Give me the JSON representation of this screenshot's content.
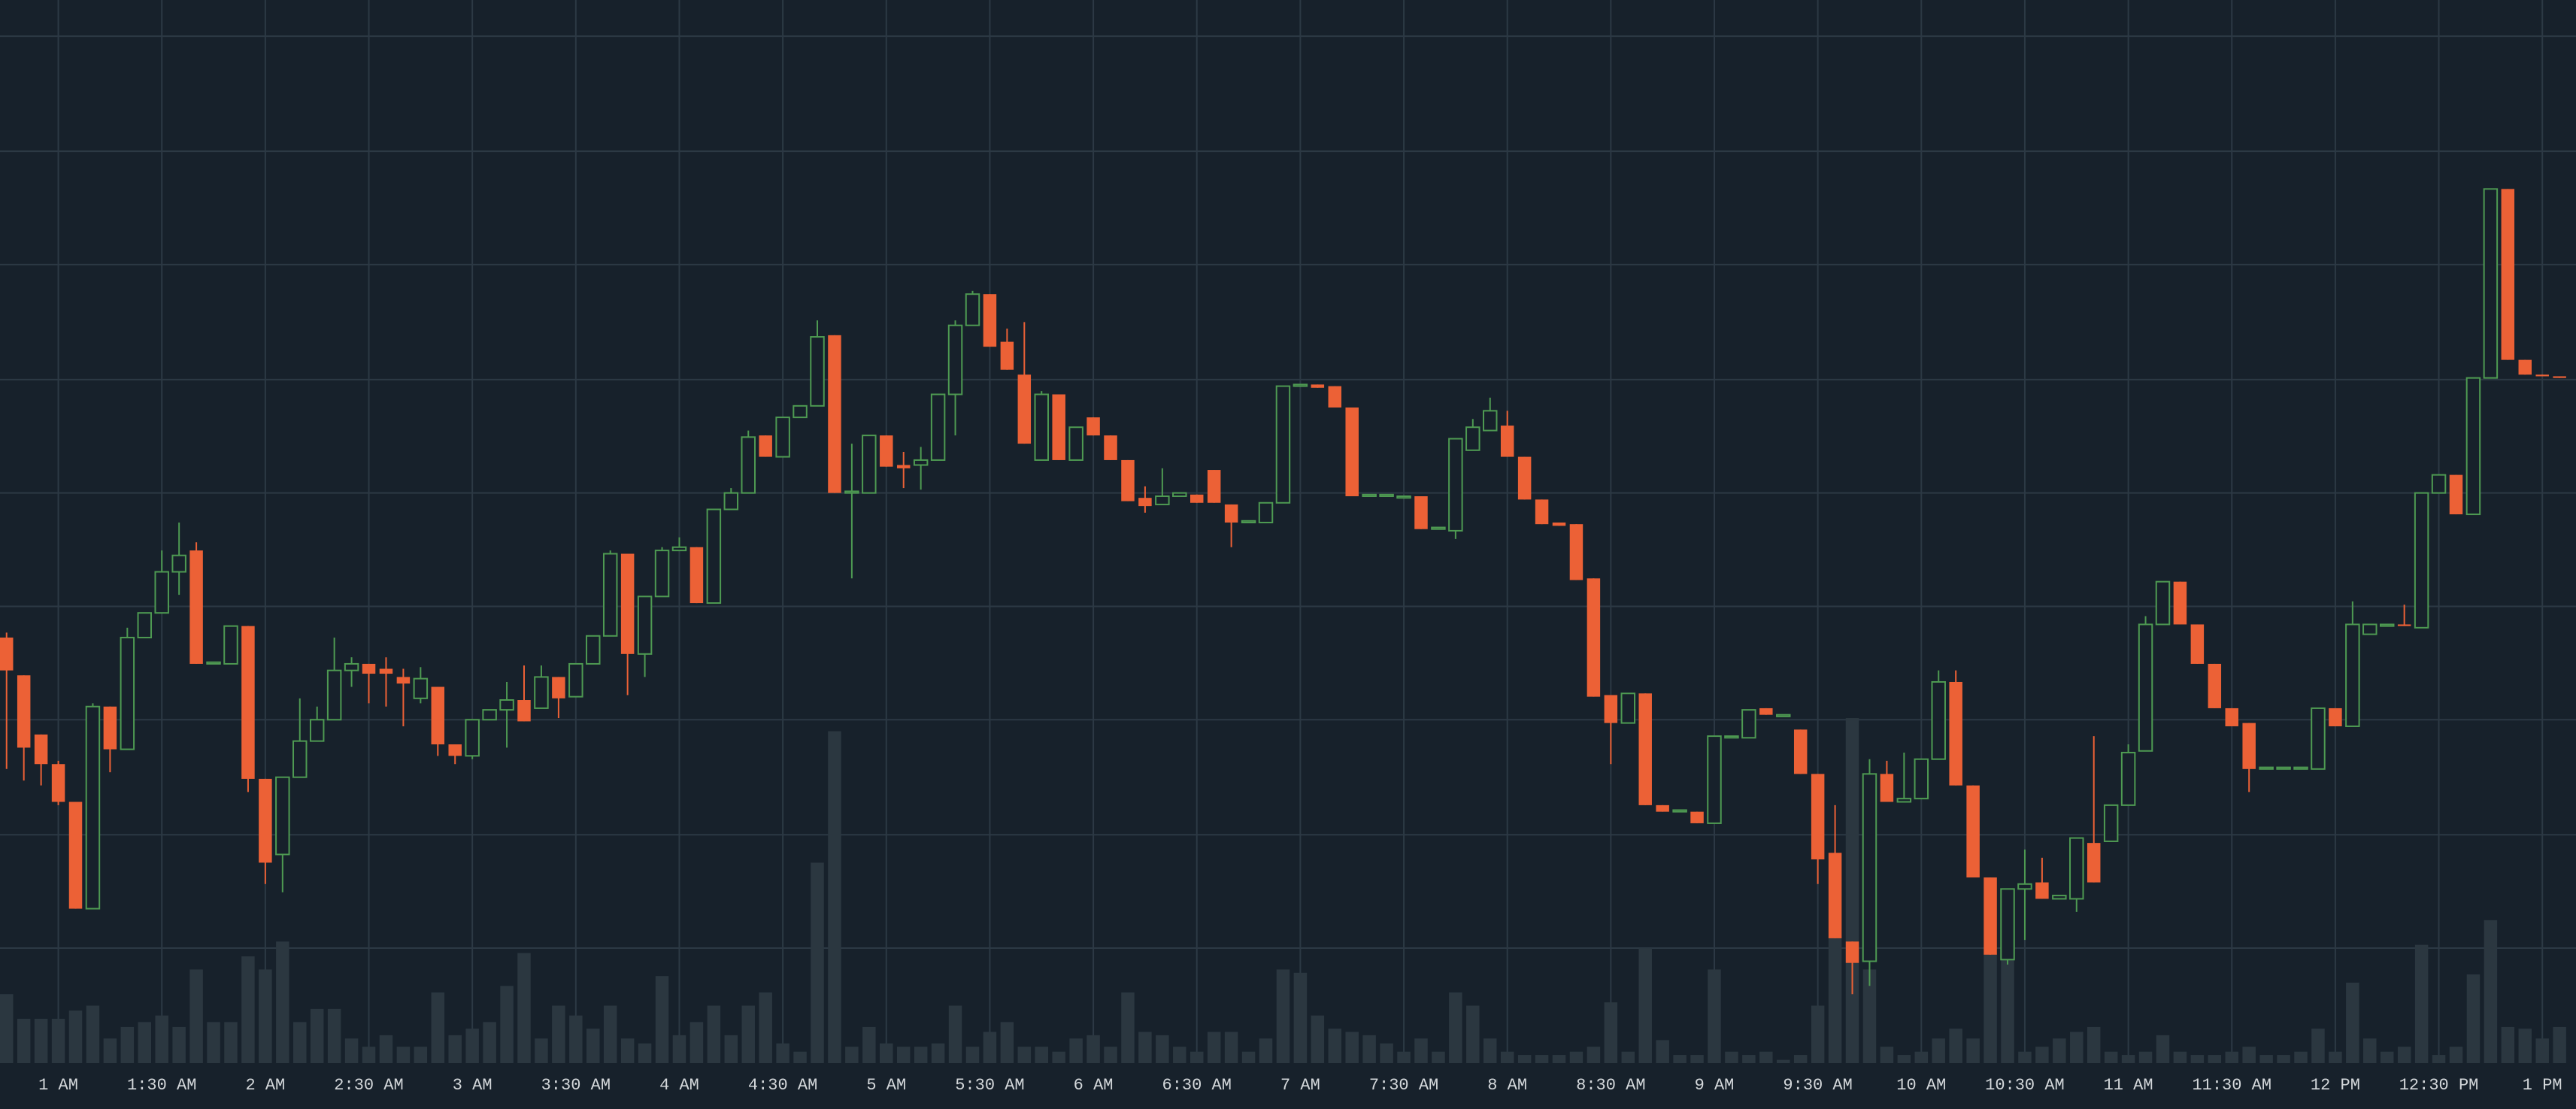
{
  "chart_data": {
    "type": "candlestick",
    "xticks": [
      {
        "value": 3,
        "label": "1 AM"
      },
      {
        "value": 9,
        "label": "1:30 AM"
      },
      {
        "value": 15,
        "label": "2 AM"
      },
      {
        "value": 21,
        "label": "2:30 AM"
      },
      {
        "value": 27,
        "label": "3 AM"
      },
      {
        "value": 33,
        "label": "3:30 AM"
      },
      {
        "value": 39,
        "label": "4 AM"
      },
      {
        "value": 45,
        "label": "4:30 AM"
      },
      {
        "value": 51,
        "label": "5 AM"
      },
      {
        "value": 57,
        "label": "5:30 AM"
      },
      {
        "value": 63,
        "label": "6 AM"
      },
      {
        "value": 69,
        "label": "6:30 AM"
      },
      {
        "value": 75,
        "label": "7 AM"
      },
      {
        "value": 81,
        "label": "7:30 AM"
      },
      {
        "value": 87,
        "label": "8 AM"
      },
      {
        "value": 93,
        "label": "8:30 AM"
      },
      {
        "value": 99,
        "label": "9 AM"
      },
      {
        "value": 105,
        "label": "9:30 AM"
      },
      {
        "value": 111,
        "label": "10 AM"
      },
      {
        "value": 117,
        "label": "10:30 AM"
      },
      {
        "value": 123,
        "label": "11 AM"
      },
      {
        "value": 129,
        "label": "11:30 AM"
      },
      {
        "value": 135,
        "label": "12 PM"
      },
      {
        "value": 141,
        "label": "12:30 PM"
      },
      {
        "value": 147,
        "label": "1 PM"
      }
    ],
    "ylim": [
      0,
      647
    ],
    "yticks": [
      70,
      139,
      209,
      278,
      347,
      416,
      486,
      555,
      625
    ],
    "grid": true,
    "up_color": "#4e9a52",
    "down_color": "#ec6136",
    "volume_color": "#2b3740",
    "open": [
      259,
      236,
      200,
      182,
      159,
      94,
      217,
      191,
      259,
      274,
      299,
      312,
      243,
      243,
      266,
      173,
      127,
      174,
      196,
      209,
      239,
      243,
      240,
      235,
      222,
      229,
      194,
      187,
      209,
      215,
      221,
      216,
      235,
      223,
      243,
      260,
      310,
      249,
      284,
      312,
      314,
      280,
      337,
      347,
      382,
      369,
      393,
      400,
      443,
      347,
      347,
      382,
      364,
      364,
      367,
      407,
      449,
      468,
      439,
      419,
      367,
      407,
      367,
      393,
      382,
      367,
      344,
      340,
      345,
      346,
      361,
      340,
      329,
      329,
      341,
      412,
      413,
      412,
      399,
      345,
      345,
      344,
      345,
      325,
      324,
      373,
      385,
      388,
      369,
      343,
      329,
      328,
      295,
      224,
      207,
      225,
      157,
      153,
      153,
      146,
      198,
      198,
      216,
      211,
      203,
      176,
      128,
      74,
      62,
      176,
      159,
      161,
      185,
      232,
      169,
      113,
      63,
      106,
      110,
      100,
      100,
      134,
      135,
      157,
      190,
      267,
      293,
      267,
      243,
      216,
      207,
      179,
      179,
      179,
      179,
      216,
      205,
      261,
      266,
      267,
      265,
      347,
      358,
      334,
      417,
      532,
      428,
      419,
      418
    ],
    "high": [
      262,
      236,
      200,
      184,
      159,
      219,
      217,
      265,
      274,
      312,
      329,
      317,
      244,
      266,
      266,
      173,
      174,
      222,
      217,
      259,
      247,
      243,
      247,
      240,
      241,
      229,
      194,
      209,
      215,
      232,
      242,
      242,
      235,
      243,
      260,
      312,
      310,
      284,
      314,
      320,
      314,
      337,
      350,
      385,
      382,
      393,
      400,
      452,
      443,
      377,
      382,
      382,
      372,
      375,
      407,
      452,
      470,
      468,
      447,
      451,
      409,
      407,
      387,
      393,
      382,
      367,
      351,
      362,
      347,
      346,
      361,
      340,
      330,
      341,
      412,
      413,
      413,
      412,
      399,
      346,
      346,
      345,
      345,
      326,
      380,
      392,
      405,
      397,
      369,
      343,
      329,
      328,
      295,
      224,
      225,
      225,
      157,
      154,
      153,
      199,
      199,
      215,
      216,
      212,
      203,
      176,
      157,
      74,
      185,
      184,
      189,
      185,
      239,
      239,
      169,
      113,
      106,
      130,
      125,
      102,
      137,
      199,
      157,
      194,
      272,
      293,
      293,
      267,
      243,
      216,
      207,
      180,
      180,
      180,
      216,
      216,
      281,
      267,
      267,
      279,
      347,
      358,
      358,
      417,
      532,
      532,
      428,
      419,
      418
    ],
    "low": [
      179,
      172,
      169,
      157,
      94,
      94,
      177,
      191,
      259,
      274,
      285,
      243,
      243,
      243,
      165,
      109,
      104,
      174,
      196,
      209,
      229,
      219,
      217,
      205,
      219,
      187,
      182,
      185,
      209,
      192,
      208,
      216,
      210,
      223,
      243,
      260,
      224,
      235,
      284,
      312,
      280,
      280,
      337,
      347,
      369,
      369,
      393,
      400,
      347,
      295,
      347,
      363,
      350,
      349,
      367,
      382,
      449,
      436,
      422,
      377,
      367,
      367,
      367,
      382,
      367,
      342,
      335,
      340,
      345,
      341,
      341,
      314,
      329,
      329,
      341,
      412,
      411,
      399,
      345,
      345,
      345,
      344,
      325,
      325,
      319,
      373,
      385,
      369,
      343,
      328,
      327,
      294,
      223,
      182,
      207,
      157,
      153,
      153,
      146,
      146,
      198,
      198,
      212,
      211,
      176,
      109,
      76,
      42,
      47,
      159,
      159,
      161,
      185,
      169,
      113,
      66,
      60,
      75,
      100,
      100,
      92,
      110,
      135,
      157,
      190,
      267,
      267,
      243,
      216,
      205,
      165,
      179,
      179,
      179,
      179,
      205,
      205,
      261,
      266,
      266,
      265,
      347,
      334,
      334,
      417,
      428,
      419,
      418,
      417
    ],
    "close": [
      239,
      192,
      182,
      159,
      94,
      217,
      191,
      259,
      274,
      299,
      309,
      243,
      244,
      266,
      173,
      122,
      174,
      196,
      209,
      239,
      243,
      237,
      237,
      231,
      234,
      194,
      187,
      209,
      215,
      221,
      208,
      235,
      222,
      243,
      260,
      310,
      249,
      284,
      312,
      314,
      280,
      337,
      347,
      381,
      369,
      393,
      400,
      442,
      347,
      348,
      382,
      363,
      362,
      367,
      407,
      449,
      468,
      436,
      422,
      377,
      407,
      367,
      387,
      382,
      367,
      342,
      339,
      345,
      347,
      341,
      341,
      329,
      330,
      341,
      412,
      413,
      411,
      399,
      345,
      346,
      346,
      345,
      325,
      326,
      380,
      387,
      397,
      369,
      343,
      328,
      327,
      294,
      223,
      207,
      225,
      157,
      153,
      154,
      146,
      199,
      199,
      215,
      212,
      212,
      176,
      124,
      76,
      61,
      176,
      159,
      161,
      185,
      232,
      169,
      113,
      66,
      106,
      109,
      100,
      102,
      137,
      110,
      157,
      189,
      267,
      293,
      267,
      243,
      216,
      205,
      179,
      180,
      180,
      180,
      216,
      205,
      267,
      267,
      267,
      266,
      347,
      358,
      334,
      417,
      532,
      428,
      419,
      418,
      417
    ],
    "volume": [
      42,
      27,
      27,
      27,
      32,
      35,
      15,
      22,
      25,
      29,
      22,
      57,
      25,
      25,
      65,
      57,
      74,
      25,
      33,
      33,
      15,
      10,
      17,
      10,
      10,
      43,
      17,
      21,
      25,
      47,
      67,
      15,
      35,
      29,
      21,
      35,
      15,
      12,
      53,
      17,
      25,
      35,
      17,
      35,
      43,
      12,
      7,
      122,
      202,
      10,
      22,
      12,
      10,
      10,
      12,
      35,
      10,
      19,
      25,
      10,
      10,
      7,
      15,
      17,
      10,
      43,
      19,
      17,
      10,
      7,
      19,
      19,
      7,
      15,
      57,
      55,
      29,
      21,
      19,
      17,
      12,
      7,
      15,
      7,
      43,
      35,
      15,
      7,
      5,
      5,
      5,
      7,
      10,
      37,
      7,
      70,
      14,
      5,
      5,
      57,
      7,
      5,
      7,
      2,
      5,
      35,
      77,
      210,
      57,
      10,
      5,
      7,
      15,
      21,
      15,
      67,
      67,
      7,
      10,
      15,
      19,
      22,
      7,
      5,
      7,
      17,
      7,
      5,
      5,
      7,
      10,
      5,
      5,
      7,
      21,
      7,
      49,
      15,
      7,
      10,
      72,
      5,
      10,
      54,
      87,
      22,
      21,
      15,
      22
    ]
  }
}
